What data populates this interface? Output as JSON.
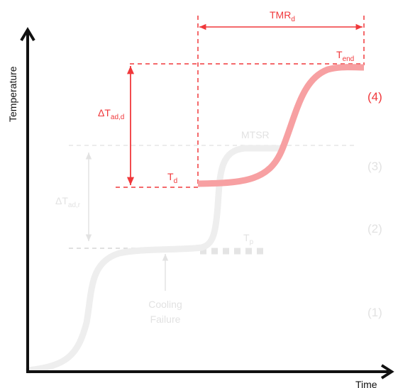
{
  "axes": {
    "y_label": "Temperature",
    "x_label": "Time"
  },
  "labels": {
    "tmr_main": "TMR",
    "tmr_sub": "d",
    "tend_main": "T",
    "tend_sub": "end",
    "dtad_d_main": "ΔT",
    "dtad_d_sub": "ad,d",
    "td_main": "T",
    "td_sub": "d",
    "mtsr": "MTSR",
    "dtad_r_main": "ΔT",
    "dtad_r_sub": "ad,r",
    "tp_main": "T",
    "tp_sub": "p",
    "cooling_line1": "Cooling",
    "cooling_line2": "Failure"
  },
  "stages": {
    "s1": "(1)",
    "s2": "(2)",
    "s3": "(3)",
    "s4": "(4)"
  },
  "colors": {
    "accent_red": "#f0383b",
    "curve_red": "#f7a0a2",
    "faded_grey": "#e2e2e2",
    "curve_grey": "#eeeeee",
    "axis": "#111111"
  }
}
